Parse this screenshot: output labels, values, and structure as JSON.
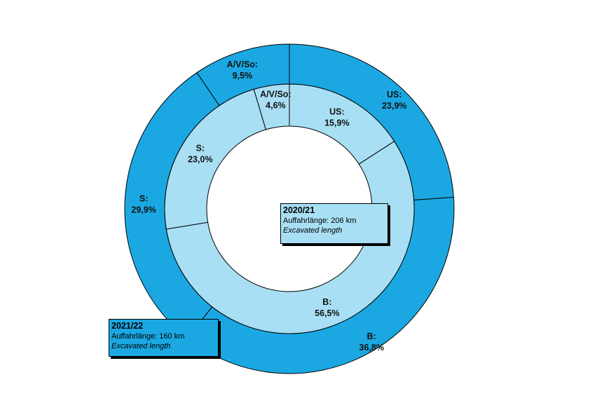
{
  "chart_data": [
    {
      "type": "pie",
      "ring": "outer",
      "year": "2021/22",
      "length_label": "Auffahrlänge: 160 km",
      "length_label_en": "Excavated length",
      "color": "#1ba8e2",
      "slices": [
        {
          "name": "US:",
          "value_label": "23,9%",
          "value": 23.9
        },
        {
          "name": "B:",
          "value_label": "36,8%",
          "value": 36.8
        },
        {
          "name": "S:",
          "value_label": "29,9%",
          "value": 29.9
        },
        {
          "name": "A/V/So:",
          "value_label": "9,5%",
          "value": 9.5
        }
      ]
    },
    {
      "type": "pie",
      "ring": "inner",
      "year": "2020/21",
      "length_label": "Auffahrlänge: 206 km",
      "length_label_en": "Excavated length",
      "color": "#a8dff4",
      "slices": [
        {
          "name": "US:",
          "value_label": "15,9%",
          "value": 15.9
        },
        {
          "name": "B:",
          "value_label": "56,5%",
          "value": 56.5
        },
        {
          "name": "S:",
          "value_label": "23,0%",
          "value": 23.0
        },
        {
          "name": "A/V/So:",
          "value_label": "4,6%",
          "value": 4.6
        }
      ]
    }
  ]
}
